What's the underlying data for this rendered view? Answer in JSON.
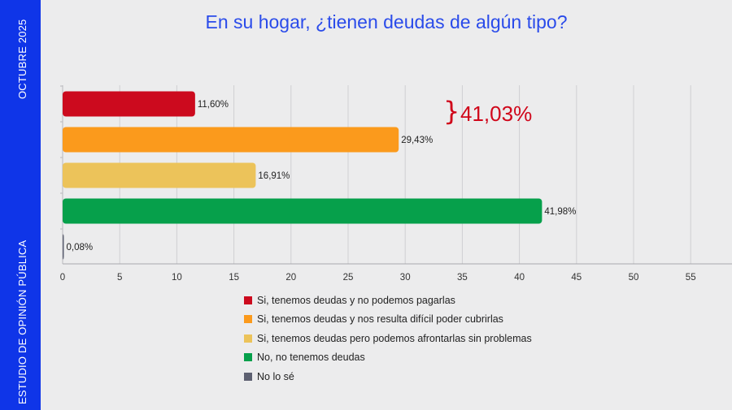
{
  "sidebar": {
    "date": "OCTUBRE 2025",
    "study": "ESTUDIO DE OPINIÓN PÚBLICA"
  },
  "colors": {
    "sidebar": "#0f35e8",
    "title": "#2a4bea",
    "annotation": "#d0061a"
  },
  "chart_data": {
    "type": "bar",
    "orientation": "horizontal",
    "title": "En su hogar, ¿tienen deudas de algún tipo?",
    "xlabel": "",
    "ylabel": "",
    "xlim": [
      0,
      59
    ],
    "xticks": [
      0,
      5,
      10,
      15,
      20,
      25,
      30,
      35,
      40,
      45,
      50,
      55
    ],
    "grid": true,
    "legend_position": "bottom",
    "categories": [
      "Si, tenemos deudas y no podemos pagarlas",
      "Si, tenemos deudas y nos resulta difícil poder cubrirlas",
      "Si, tenemos deudas pero podemos afrontarlas sin problemas",
      "No, no tenemos deudas",
      "No lo sé"
    ],
    "values": [
      11.6,
      29.43,
      16.91,
      41.98,
      0.08
    ],
    "value_labels": [
      "11,60%",
      "29,43%",
      "16,91%",
      "41,98%",
      "0,08%"
    ],
    "colors": [
      "#cc0a1e",
      "#fb9a1c",
      "#ecc35a",
      "#06a04b",
      "#5d6071"
    ],
    "annotation": {
      "text": "41,03%",
      "bracket": "}"
    }
  }
}
